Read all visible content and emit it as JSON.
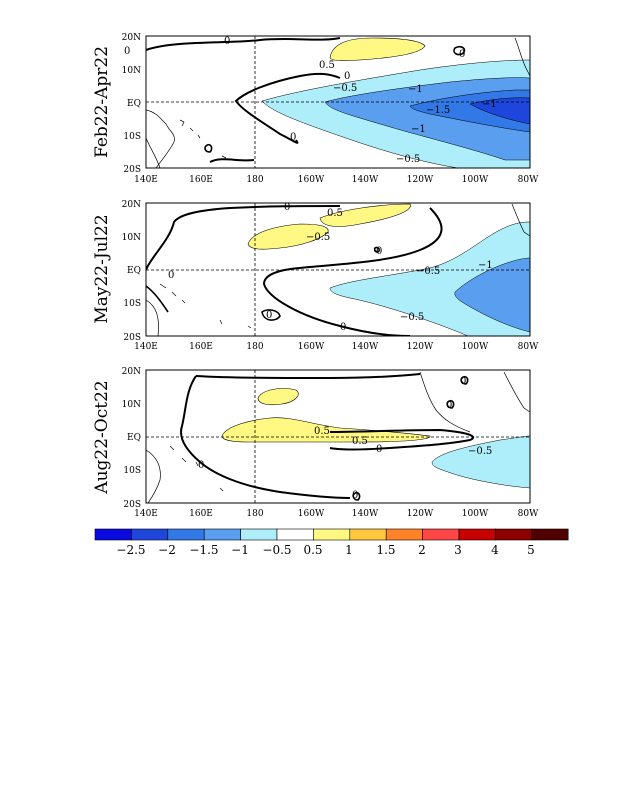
{
  "panels": [
    {
      "title": "Feb22-Apr22",
      "contour_labels": [
        "0.5",
        "-0.5",
        "-1",
        "-1.5",
        "-1",
        "-0.5",
        "-1",
        "0",
        "0",
        "0",
        "0",
        "0"
      ]
    },
    {
      "title": "May22-Jul22",
      "contour_labels": [
        "0.5",
        "-0.5",
        "-0.5",
        "-1",
        "-0.5",
        "0",
        "0",
        "0",
        "0",
        "0"
      ]
    },
    {
      "title": "Aug22-Oct22",
      "contour_labels": [
        "0.5",
        "0.5",
        "-0.5",
        "0",
        "0",
        "0",
        "0",
        "0"
      ]
    }
  ],
  "x_ticks": [
    "140E",
    "160E",
    "180",
    "160W",
    "140W",
    "120W",
    "100W",
    "80W"
  ],
  "y_ticks": [
    "20N",
    "10N",
    "EQ",
    "10S",
    "20S"
  ],
  "colorbar": {
    "labels": [
      "-2.5",
      "-2",
      "-1.5",
      "-1",
      "-0.5",
      "0.5",
      "1",
      "1.5",
      "2",
      "3",
      "4",
      "5"
    ],
    "colors": [
      "#0a0ae0",
      "#1e46dc",
      "#3278e6",
      "#5a9ef0",
      "#aeeefa",
      "#ffffff",
      "#fff882",
      "#ffc83c",
      "#ff8228",
      "#ff4646",
      "#c80000",
      "#8c0000",
      "#500000"
    ]
  }
}
